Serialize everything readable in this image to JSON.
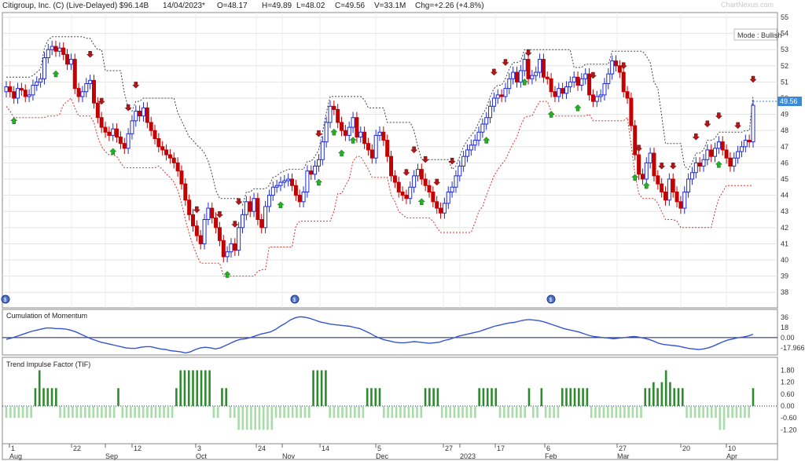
{
  "header": {
    "title": "Citigroup, Inc. (C) (Live-Delayed) $96.14B",
    "date": "14/04/2023*",
    "open": "O=48.17",
    "high": "H=49.89",
    "low": "L=48.02",
    "close": "C=49.56",
    "volume": "V=33.1M",
    "change": "Chg=+2.26 (+4.8%)",
    "watermark": "ChartNexus.com"
  },
  "mode_label": "Mode : Bullish",
  "last_price_label": "49.56",
  "chart_data": [
    {
      "type": "candlestick",
      "ylim": [
        37,
        55
      ],
      "y_ticks": [
        "55",
        "54",
        "53",
        "52",
        "51",
        "50",
        "49",
        "48",
        "47",
        "46",
        "45",
        "44",
        "43",
        "42",
        "41",
        "40",
        "39",
        "38"
      ],
      "grid": true,
      "colors": {
        "up": "#1f2bd6",
        "down": "#c40000",
        "up_arrow": "#22b122",
        "down_arrow": "#b01818",
        "stop_upper": "#444444",
        "stop_lower": "#e0302b"
      },
      "x_labels": [
        {
          "day": "1",
          "month": "Aug"
        },
        {
          "day": "22",
          "month": ""
        },
        {
          "day": "",
          "month": "Sep"
        },
        {
          "day": "12",
          "month": ""
        },
        {
          "day": "3",
          "month": "Oct"
        },
        {
          "day": "24",
          "month": ""
        },
        {
          "day": "",
          "month": "Nov"
        },
        {
          "day": "14",
          "month": ""
        },
        {
          "day": "5",
          "month": "Dec"
        },
        {
          "day": "27",
          "month": ""
        },
        {
          "day": "",
          "month": "2023"
        },
        {
          "day": "17",
          "month": ""
        },
        {
          "day": "6",
          "month": "Feb"
        },
        {
          "day": "27",
          "month": "Mar"
        },
        {
          "day": "20",
          "month": ""
        },
        {
          "day": "10",
          "month": "Apr"
        }
      ],
      "close_values": [
        50.7,
        50.4,
        50.0,
        50.6,
        50.5,
        50.1,
        50.2,
        50.8,
        51.0,
        51.2,
        52.5,
        53.0,
        53.2,
        52.9,
        53.1,
        52.7,
        52.1,
        52.4,
        50.6,
        50.1,
        50.4,
        50.9,
        51.1,
        49.7,
        48.8,
        48.2,
        47.9,
        47.7,
        48.1,
        47.6,
        47.2,
        46.9,
        47.8,
        48.6,
        49.2,
        48.9,
        49.4,
        48.5,
        48.0,
        47.5,
        47.0,
        46.8,
        46.5,
        46.3,
        46.0,
        45.5,
        44.7,
        43.7,
        42.8,
        42.1,
        41.5,
        41.0,
        42.5,
        43.2,
        42.6,
        42.0,
        41.2,
        40.2,
        40.5,
        41.0,
        40.6,
        42.0,
        42.8,
        43.6,
        43.0,
        43.8,
        42.5,
        42.0,
        43.3,
        44.0,
        44.5,
        44.6,
        44.8,
        44.9,
        45.0,
        44.6,
        44.0,
        43.6,
        44.2,
        45.5,
        45.3,
        45.8,
        46.2,
        47.3,
        48.5,
        49.5,
        49.3,
        48.5,
        48.0,
        47.7,
        48.2,
        48.8,
        47.6,
        47.9,
        47.2,
        46.8,
        46.3,
        47.7,
        47.9,
        47.4,
        46.4,
        45.2,
        44.8,
        44.2,
        44.0,
        43.8,
        44.5,
        45.2,
        45.6,
        45.0,
        44.6,
        44.2,
        43.6,
        43.2,
        42.9,
        43.5,
        44.2,
        44.5,
        45.2,
        45.8,
        46.4,
        46.8,
        47.1,
        47.4,
        47.9,
        48.4,
        48.8,
        49.5,
        50.0,
        50.2,
        50.1,
        50.6,
        51.2,
        51.6,
        51.0,
        51.7,
        52.4,
        51.2,
        51.4,
        51.6,
        52.4,
        51.3,
        51.2,
        50.4,
        50.1,
        50.6,
        50.3,
        50.7,
        51.0,
        51.3,
        50.8,
        51.2,
        51.5,
        50.2,
        49.8,
        50.1,
        50.2,
        50.9,
        51.5,
        52.3,
        52.0,
        51.6,
        50.4,
        50.0,
        48.3,
        46.5,
        45.3,
        45.0,
        46.0,
        46.6,
        45.2,
        44.7,
        44.2,
        43.7,
        45.0,
        44.2,
        43.6,
        43.2,
        44.2,
        45.0,
        45.4,
        46.0,
        45.8,
        46.2,
        46.8,
        46.4,
        46.9,
        47.3,
        46.8,
        46.3,
        45.8,
        46.3,
        46.7,
        47.0,
        47.4,
        47.3,
        49.56
      ],
      "buy_signal_indices": [
        2,
        13,
        28,
        58,
        72,
        82,
        86,
        88,
        91,
        109,
        126,
        136,
        143,
        150,
        165,
        168,
        187,
        199
      ],
      "sell_signal_indices": [
        22,
        25,
        32,
        34,
        50,
        56,
        60,
        61,
        82,
        105,
        107,
        110,
        113,
        117,
        128,
        131,
        137,
        154,
        162,
        166,
        172,
        175,
        181,
        184,
        187,
        192,
        196
      ]
    },
    {
      "type": "line",
      "title": "Cumulation of Momentum",
      "ylim": [
        -30,
        44
      ],
      "y_ticks": [
        "36",
        "18",
        "0.00",
        "-17.966"
      ],
      "series": [
        {
          "values": [
            -3,
            -1,
            2,
            5,
            8,
            11,
            13,
            15,
            17,
            17,
            16,
            16,
            15,
            13,
            10,
            6,
            2,
            -2,
            -5,
            -8,
            -10,
            -12,
            -14,
            -16,
            -18,
            -19,
            -19,
            -17,
            -16,
            -16,
            -18,
            -20,
            -21,
            -23,
            -24,
            -25,
            -27,
            -25,
            -21,
            -18,
            -17,
            -18,
            -20,
            -18,
            -14,
            -10,
            -6,
            -3,
            -2,
            0,
            3,
            6,
            8,
            10,
            14,
            20,
            25,
            31,
            35,
            37,
            36,
            34,
            31,
            28,
            26,
            24,
            23,
            22,
            21,
            20,
            18,
            16,
            12,
            8,
            3,
            -1,
            -4,
            -6,
            -8,
            -9,
            -9,
            -8,
            -7,
            -8,
            -9,
            -10,
            -9,
            -8,
            -5,
            -3,
            0,
            3,
            5,
            7,
            9,
            11,
            14,
            17,
            20,
            22,
            24,
            26,
            27,
            29,
            31,
            32,
            31,
            30,
            28,
            25,
            22,
            19,
            16,
            14,
            12,
            10,
            7,
            4,
            2,
            1,
            0,
            -1,
            -2,
            -1,
            0,
            1,
            2,
            1,
            -1,
            -3,
            -6,
            -10,
            -12,
            -13,
            -14,
            -15,
            -17,
            -19,
            -20,
            -21,
            -20,
            -18,
            -15,
            -11,
            -7,
            -4,
            -2,
            0,
            1,
            3,
            6
          ]
        }
      ]
    },
    {
      "type": "bar",
      "title": "Trend Impulse Factor (TIF)",
      "ylim": [
        -1.6,
        2.1
      ],
      "y_ticks": [
        "1.80",
        "1.20",
        "0.60",
        "0.00",
        "-0.60",
        "-1.20"
      ],
      "colors": {
        "positive": "#2e8b2e",
        "negative": "#a8dca8"
      },
      "values": [
        -0.6,
        -0.6,
        -0.6,
        -0.6,
        -0.6,
        -0.6,
        -0.6,
        0.9,
        1.8,
        0.9,
        0.9,
        0.9,
        0.9,
        -0.6,
        -0.6,
        -0.6,
        -0.6,
        -0.6,
        -0.6,
        -0.6,
        -0.6,
        -0.6,
        -0.6,
        -0.6,
        -0.6,
        -0.6,
        -0.6,
        0.9,
        -0.6,
        -0.6,
        -0.6,
        -0.6,
        -0.6,
        -0.6,
        -0.6,
        -0.6,
        -0.6,
        -0.6,
        -0.6,
        -0.6,
        -0.6,
        0.9,
        1.8,
        1.8,
        1.8,
        1.8,
        1.8,
        1.8,
        1.8,
        1.8,
        -0.6,
        -0.6,
        0.9,
        0.9,
        -0.6,
        -0.6,
        -1.2,
        -1.2,
        -1.2,
        -1.2,
        -1.2,
        -1.2,
        -1.2,
        -1.2,
        -1.2,
        -0.6,
        -0.6,
        -0.6,
        -0.6,
        -0.6,
        -0.6,
        -0.6,
        -0.6,
        -0.6,
        1.8,
        1.8,
        1.8,
        1.8,
        -0.6,
        -0.6,
        -0.6,
        -0.6,
        -0.6,
        -0.6,
        -0.6,
        -0.6,
        -0.6,
        0.9,
        0.9,
        0.9,
        0.9,
        -0.6,
        -0.6,
        -0.6,
        -0.6,
        -0.6,
        -0.6,
        -0.6,
        -0.6,
        -0.6,
        -0.6,
        0.9,
        0.9,
        0.9,
        0.9,
        -0.6,
        -0.6,
        -0.6,
        -0.6,
        -0.6,
        -0.6,
        -0.6,
        -0.6,
        -0.6,
        0.9,
        0.9,
        0.9,
        0.9,
        0.9,
        -0.6,
        -0.6,
        -0.6,
        -0.6,
        -0.6,
        -0.6,
        -0.6,
        0.9,
        -0.6,
        -0.6,
        0.9,
        -0.6,
        -0.6,
        -0.6,
        -0.6,
        0.9,
        0.9,
        0.9,
        0.9,
        0.9,
        0.9,
        0.9,
        -0.6,
        -0.6,
        -0.6,
        -0.6,
        -0.6,
        -0.6,
        -0.6,
        -0.6,
        -0.6,
        -0.6,
        -0.6,
        -0.6,
        -0.6,
        0.9,
        0.9,
        1.2,
        0.9,
        1.2,
        1.8,
        1.2,
        0.9,
        0.9,
        0.9,
        -0.6,
        -0.6,
        -0.6,
        -0.6,
        -0.6,
        -0.6,
        -0.6,
        -0.6,
        -1.2,
        -1.2,
        -0.6,
        -0.6,
        -0.6,
        -0.6,
        -0.6,
        -0.6,
        0.9
      ]
    }
  ]
}
